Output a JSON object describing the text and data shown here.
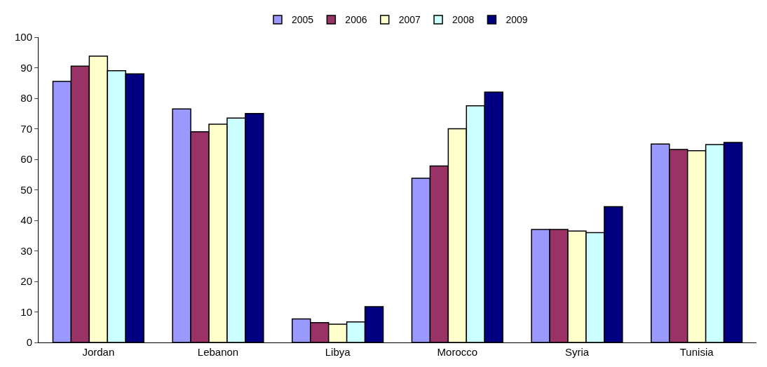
{
  "chart_data": {
    "type": "bar",
    "categories": [
      "Jordan",
      "Lebanon",
      "Libya",
      "Morocco",
      "Syria",
      "Tunisia"
    ],
    "series": [
      {
        "name": "2005",
        "color": "#9999ff",
        "values": [
          85.5,
          76.5,
          7.7,
          53.8,
          37,
          65
        ]
      },
      {
        "name": "2006",
        "color": "#993366",
        "values": [
          90.5,
          69,
          6.5,
          57.8,
          37,
          63.2
        ]
      },
      {
        "name": "2007",
        "color": "#ffffcc",
        "values": [
          93.8,
          71.5,
          6,
          70,
          36.5,
          62.8
        ]
      },
      {
        "name": "2008",
        "color": "#ccffff",
        "values": [
          89,
          73.5,
          6.7,
          77.5,
          36,
          64.8
        ]
      },
      {
        "name": "2009",
        "color": "#000080",
        "values": [
          88,
          75,
          11.7,
          82,
          44.5,
          65.5
        ]
      }
    ],
    "ylim": [
      0,
      100
    ],
    "yticks": [
      0,
      10,
      20,
      30,
      40,
      50,
      60,
      70,
      80,
      90,
      100
    ],
    "grid": false,
    "legend": "top"
  }
}
